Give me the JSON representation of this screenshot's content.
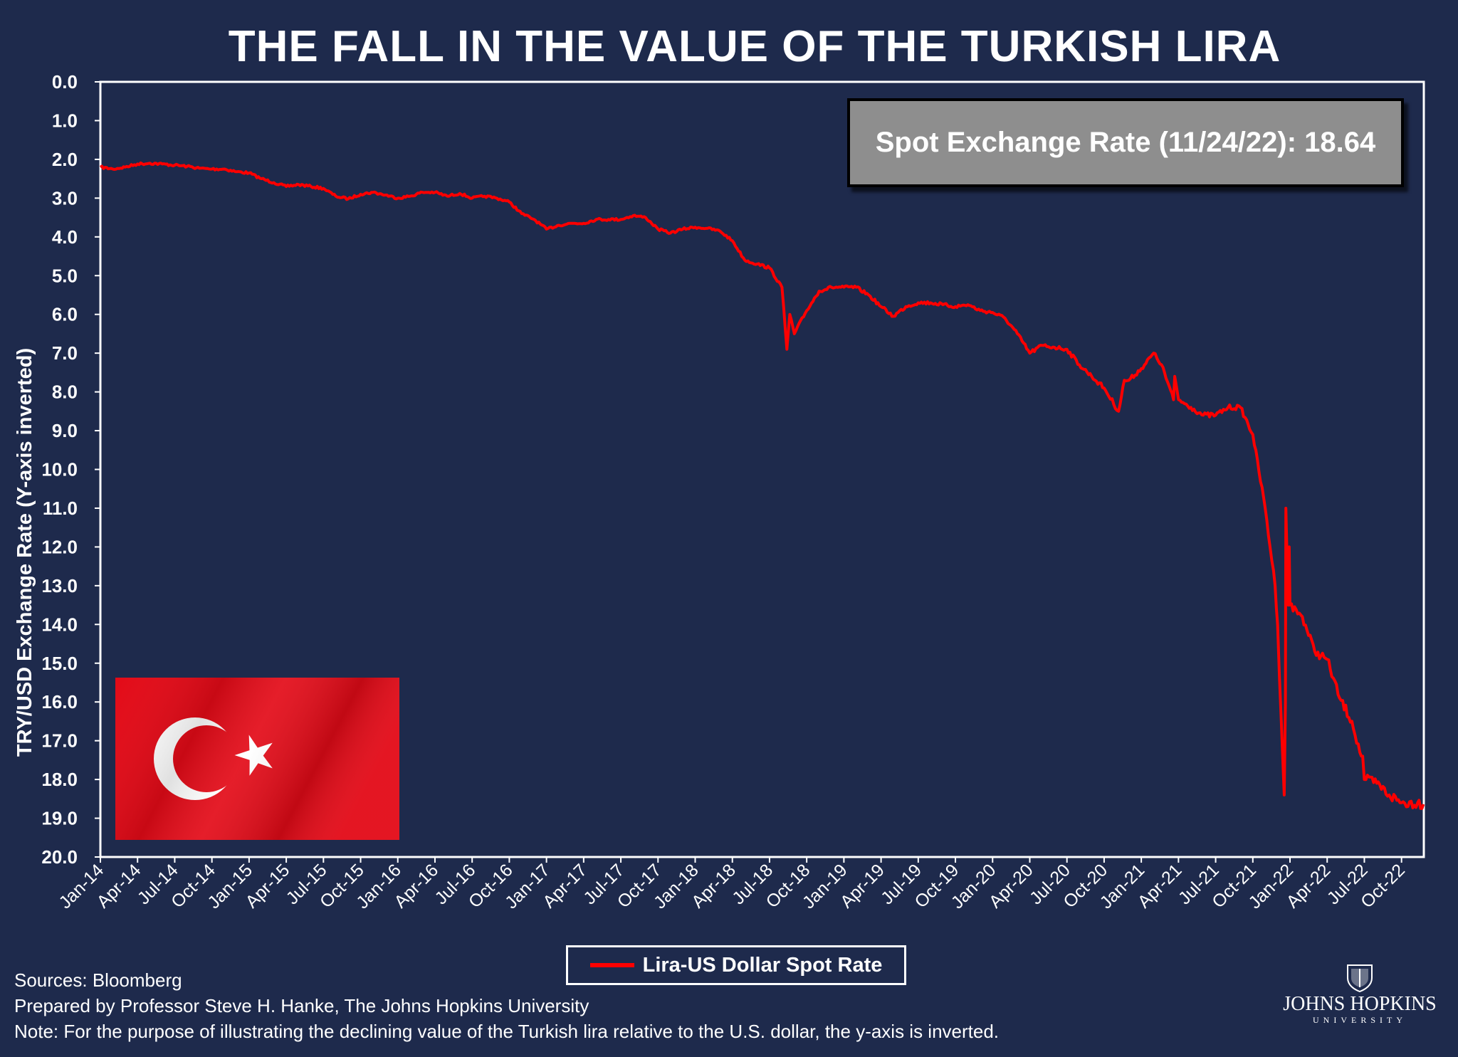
{
  "title": "THE FALL IN THE VALUE OF THE TURKISH LIRA",
  "spot_box": {
    "label": "Spot Exchange Rate (11/24/22): 18.64"
  },
  "legend": {
    "label": "Lira-US Dollar Spot Rate"
  },
  "footnotes": {
    "sources": "Sources: Bloomberg",
    "prepared": "Prepared by Professor Steve H. Hanke, The Johns Hopkins University",
    "note": "Note: For the purpose of illustrating the declining value of the Turkish lira relative to the U.S. dollar, the y-axis is inverted."
  },
  "logo": {
    "name": "JOHNS HOPKINS",
    "sub": "UNIVERSITY"
  },
  "colors": {
    "background": "#1e2a4c",
    "series": "#ff0000",
    "spot_box": "#8e8e8e"
  },
  "flag": {
    "name": "flag of Turkey",
    "colors": [
      "#e30a17",
      "#ffffff"
    ]
  },
  "chart_data": {
    "type": "line",
    "title": "THE FALL IN THE VALUE OF THE TURKISH LIRA",
    "ylabel": "TRY/USD Exchange Rate (Y-axis inverted)",
    "xlabel": "",
    "y_inverted": true,
    "ylim": [
      0,
      20
    ],
    "y_ticks": [
      "0.0",
      "1.0",
      "2.0",
      "3.0",
      "4.0",
      "5.0",
      "6.0",
      "7.0",
      "8.0",
      "9.0",
      "10.0",
      "11.0",
      "12.0",
      "13.0",
      "14.0",
      "15.0",
      "16.0",
      "17.0",
      "18.0",
      "19.0",
      "20.0"
    ],
    "x_ticks": [
      "Jan-14",
      "Apr-14",
      "Jul-14",
      "Oct-14",
      "Jan-15",
      "Apr-15",
      "Jul-15",
      "Oct-15",
      "Jan-16",
      "Apr-16",
      "Jul-16",
      "Oct-16",
      "Jan-17",
      "Apr-17",
      "Jul-17",
      "Oct-17",
      "Jan-18",
      "Apr-18",
      "Jul-18",
      "Oct-18",
      "Jan-19",
      "Apr-19",
      "Jul-19",
      "Oct-19",
      "Jan-20",
      "Apr-20",
      "Jul-20",
      "Oct-20",
      "Jan-21",
      "Apr-21",
      "Jul-21",
      "Oct-21",
      "Jan-22",
      "Apr-22",
      "Jul-22",
      "Oct-22"
    ],
    "xlim": [
      "2014-01",
      "2022-11"
    ],
    "grid": false,
    "legend_position": "bottom-center",
    "series": [
      {
        "name": "Lira-US Dollar Spot Rate",
        "color": "#ff0000",
        "x": [
          "2014-01",
          "2014-02",
          "2014-03",
          "2014-04",
          "2014-05",
          "2014-06",
          "2014-07",
          "2014-08",
          "2014-09",
          "2014-10",
          "2014-11",
          "2014-12",
          "2015-01",
          "2015-02",
          "2015-03",
          "2015-04",
          "2015-05",
          "2015-06",
          "2015-07",
          "2015-08",
          "2015-09",
          "2015-10",
          "2015-11",
          "2015-12",
          "2016-01",
          "2016-02",
          "2016-03",
          "2016-04",
          "2016-05",
          "2016-06",
          "2016-07",
          "2016-08",
          "2016-09",
          "2016-10",
          "2016-11",
          "2016-12",
          "2017-01",
          "2017-02",
          "2017-03",
          "2017-04",
          "2017-05",
          "2017-06",
          "2017-07",
          "2017-08",
          "2017-09",
          "2017-10",
          "2017-11",
          "2017-12",
          "2018-01",
          "2018-02",
          "2018-03",
          "2018-04",
          "2018-05",
          "2018-06",
          "2018-07",
          "2018-08-01",
          "2018-08-13",
          "2018-08-20",
          "2018-09",
          "2018-10",
          "2018-11",
          "2018-12",
          "2019-01",
          "2019-02",
          "2019-03",
          "2019-04",
          "2019-05",
          "2019-06",
          "2019-07",
          "2019-08",
          "2019-09",
          "2019-10",
          "2019-11",
          "2019-12",
          "2020-01",
          "2020-02",
          "2020-03",
          "2020-04",
          "2020-05",
          "2020-06",
          "2020-07",
          "2020-08",
          "2020-09",
          "2020-10",
          "2020-11-06",
          "2020-11-20",
          "2020-12",
          "2021-01",
          "2021-02",
          "2021-02-20",
          "2021-03-19",
          "2021-03-22",
          "2021-04",
          "2021-05",
          "2021-06",
          "2021-07",
          "2021-08",
          "2021-09",
          "2021-10",
          "2021-11",
          "2021-11-25",
          "2021-12-01",
          "2021-12-10",
          "2021-12-17",
          "2021-12-20",
          "2021-12-21",
          "2021-12-27",
          "2021-12-29",
          "2022-01",
          "2022-02",
          "2022-03",
          "2022-04",
          "2022-05",
          "2022-06",
          "2022-06-20",
          "2022-06-27",
          "2022-07",
          "2022-08",
          "2022-09",
          "2022-10",
          "2022-11-10",
          "2022-11-24"
        ],
        "y": [
          2.2,
          2.25,
          2.2,
          2.12,
          2.1,
          2.12,
          2.15,
          2.18,
          2.23,
          2.25,
          2.25,
          2.32,
          2.35,
          2.5,
          2.6,
          2.7,
          2.65,
          2.7,
          2.75,
          2.95,
          3.02,
          2.9,
          2.85,
          2.92,
          3.0,
          2.95,
          2.85,
          2.85,
          2.95,
          2.88,
          3.0,
          2.95,
          3.0,
          3.1,
          3.4,
          3.55,
          3.8,
          3.7,
          3.65,
          3.65,
          3.55,
          3.55,
          3.55,
          3.45,
          3.5,
          3.8,
          3.9,
          3.8,
          3.75,
          3.78,
          3.85,
          4.1,
          4.6,
          4.7,
          4.8,
          5.3,
          6.9,
          6.0,
          6.5,
          5.9,
          5.4,
          5.3,
          5.3,
          5.3,
          5.5,
          5.8,
          6.05,
          5.8,
          5.7,
          5.7,
          5.75,
          5.8,
          5.75,
          5.9,
          5.95,
          6.1,
          6.5,
          7.0,
          6.8,
          6.85,
          6.9,
          7.3,
          7.6,
          7.9,
          8.5,
          7.7,
          7.7,
          7.4,
          7.0,
          7.3,
          8.2,
          7.6,
          8.2,
          8.4,
          8.6,
          8.6,
          8.4,
          8.4,
          9.1,
          11.0,
          13.0,
          14.0,
          16.5,
          18.4,
          16.0,
          11.0,
          13.5,
          12.0,
          13.5,
          13.8,
          14.7,
          14.9,
          15.9,
          16.5,
          17.3,
          17.4,
          18.0,
          18.1,
          18.4,
          18.6,
          18.6,
          18.64
        ]
      }
    ]
  }
}
